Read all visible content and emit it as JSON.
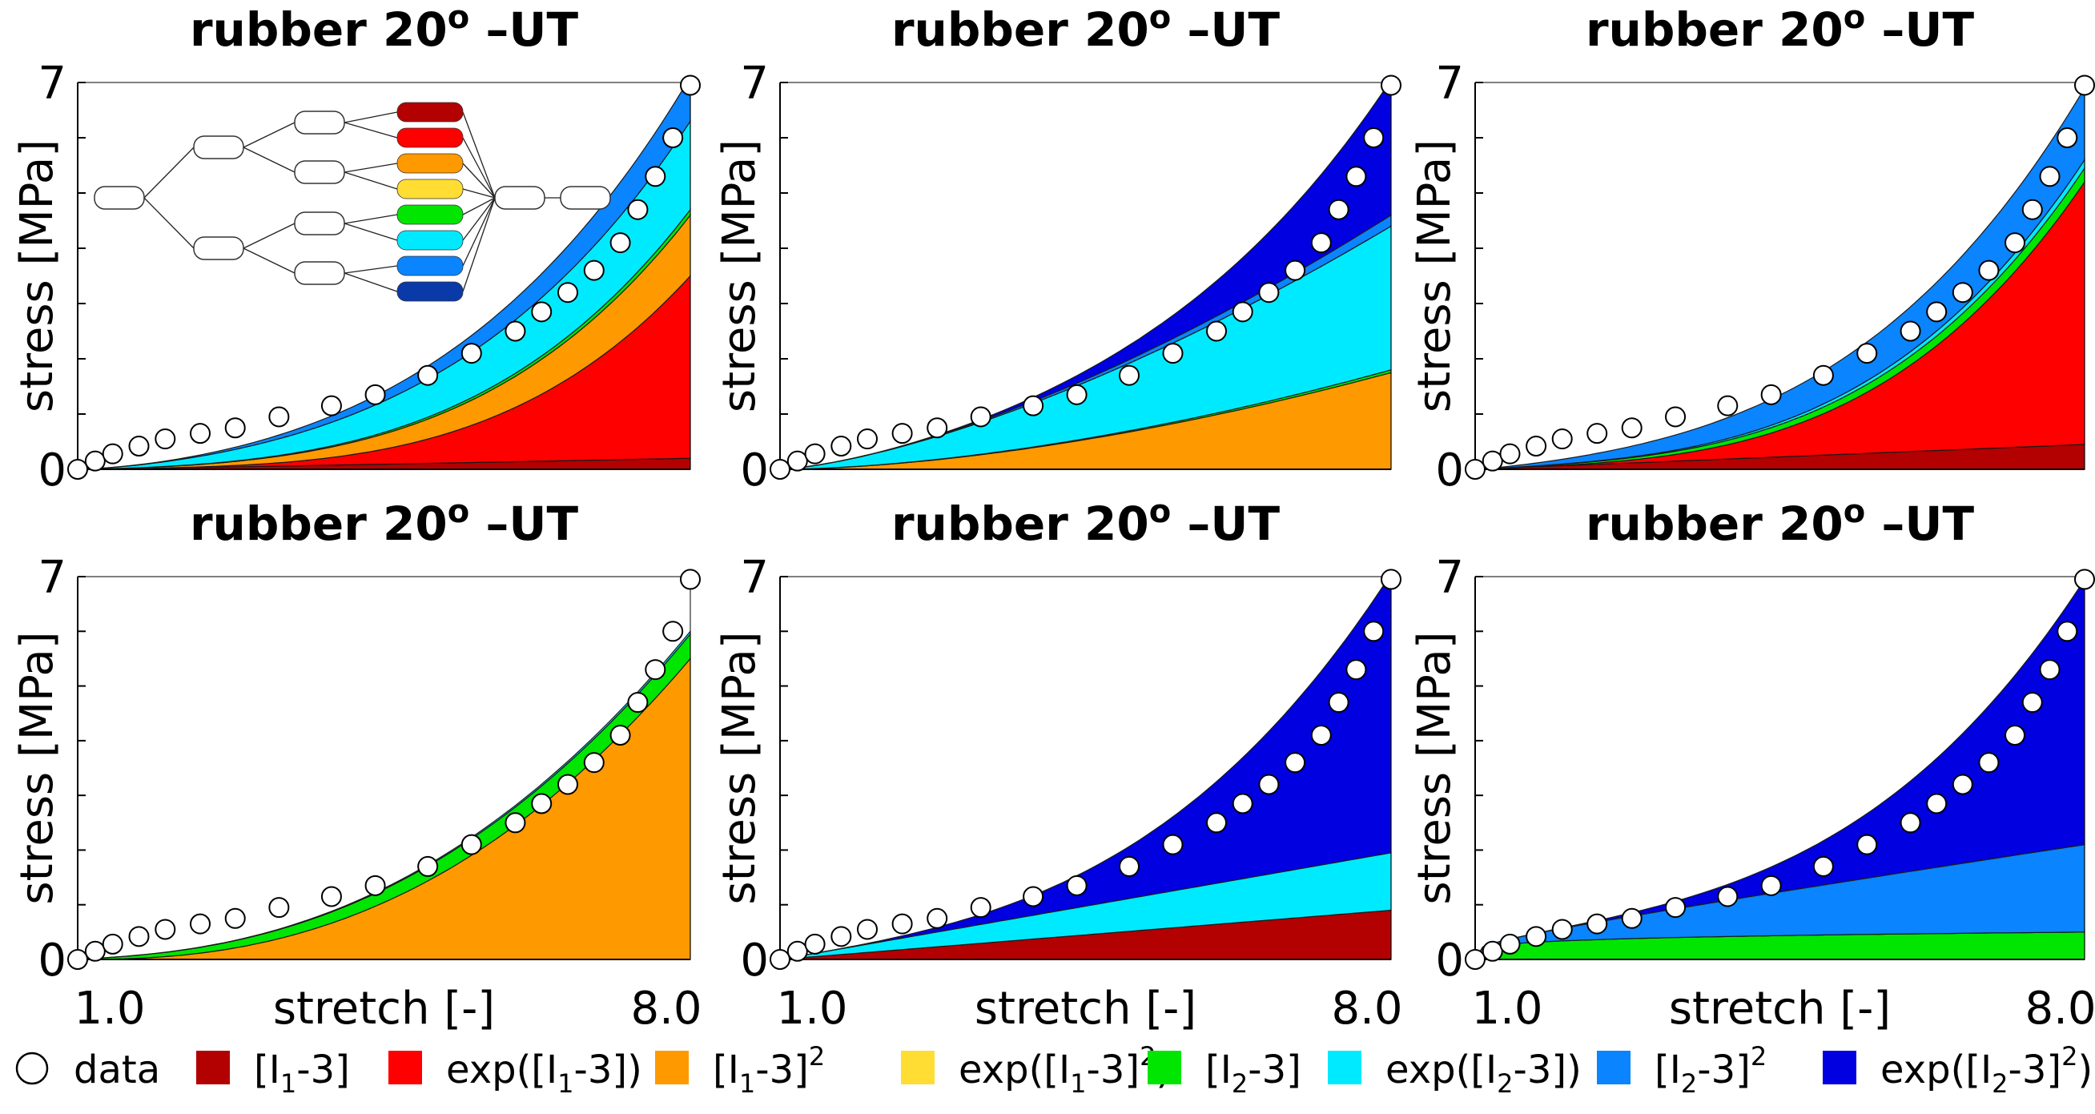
{
  "figure": {
    "colors": {
      "lin_I1": "#b30000",
      "exp_I1": "#ff0000",
      "quad_I1": "#ff9900",
      "expquad_I1": "#ffdd33",
      "lin_I2": "#00e600",
      "exp_I2": "#00eaff",
      "quad_I2": "#0a84ff",
      "expquad_I2": "#0000e0"
    },
    "legend": [
      {
        "key": "data",
        "marker": "circle",
        "parts": [
          {
            "t": "data"
          }
        ]
      },
      {
        "key": "lin_I1",
        "parts": [
          {
            "t": "[I"
          },
          {
            "t": "1",
            "sub": true
          },
          {
            "t": "-3]"
          }
        ]
      },
      {
        "key": "exp_I1",
        "parts": [
          {
            "t": "exp([I"
          },
          {
            "t": "1",
            "sub": true
          },
          {
            "t": "-3])"
          }
        ]
      },
      {
        "key": "quad_I1",
        "parts": [
          {
            "t": "[I"
          },
          {
            "t": "1",
            "sub": true
          },
          {
            "t": "-3]"
          },
          {
            "t": "2",
            "sup": true
          }
        ]
      },
      {
        "key": "expquad_I1",
        "parts": [
          {
            "t": "exp([I"
          },
          {
            "t": "1",
            "sub": true
          },
          {
            "t": "-3]"
          },
          {
            "t": "2",
            "sup": true
          },
          {
            "t": ")"
          }
        ]
      },
      {
        "key": "lin_I2",
        "parts": [
          {
            "t": "[I"
          },
          {
            "t": "2",
            "sub": true
          },
          {
            "t": "-3]"
          }
        ]
      },
      {
        "key": "exp_I2",
        "parts": [
          {
            "t": "exp([I"
          },
          {
            "t": "2",
            "sub": true
          },
          {
            "t": "-3])"
          }
        ]
      },
      {
        "key": "quad_I2",
        "parts": [
          {
            "t": "[I"
          },
          {
            "t": "2",
            "sub": true
          },
          {
            "t": "-3]"
          },
          {
            "t": "2",
            "sup": true
          }
        ]
      },
      {
        "key": "expquad_I2",
        "parts": [
          {
            "t": "exp([I"
          },
          {
            "t": "2",
            "sub": true
          },
          {
            "t": "-3]"
          },
          {
            "t": "2",
            "sup": true
          },
          {
            "t": ")"
          }
        ]
      }
    ],
    "inset": {
      "node_colors": [
        "#b30000",
        "#ff0000",
        "#ff9900",
        "#ffdd33",
        "#00e600",
        "#00eaff",
        "#0a84ff",
        "#0a3aa8"
      ]
    }
  },
  "chart_data": [
    {
      "type": "area",
      "title_main": "rubber 20",
      "title_sup": "o",
      "title_suffix": " –UT",
      "xlabel": "stretch [-]",
      "ylabel": "stress [MPa]",
      "xlim": [
        1.0,
        8.0
      ],
      "ylim": [
        0,
        7
      ],
      "xticklabels": [
        "1.0",
        "8.0"
      ],
      "yticklabels": [
        "0",
        "7"
      ],
      "terms": [
        {
          "key": "lin_I1",
          "max": 0.2,
          "p": 1.1
        },
        {
          "key": "exp_I1",
          "max": 3.3,
          "p": 3.6
        },
        {
          "key": "quad_I1",
          "max": 1.1,
          "p": 2.0
        },
        {
          "key": "lin_I2",
          "max": 0.1,
          "p": 1.8
        },
        {
          "key": "exp_I2",
          "max": 1.6,
          "p": 1.5
        },
        {
          "key": "quad_I2",
          "max": 0.8,
          "p": 2.2
        }
      ],
      "data_x": [
        1.0,
        1.2,
        1.4,
        1.7,
        2.0,
        2.4,
        2.8,
        3.3,
        3.9,
        4.4,
        5.0,
        5.5,
        6.0,
        6.3,
        6.6,
        6.9,
        7.2,
        7.4,
        7.6,
        7.8,
        8.0
      ],
      "data_y": [
        0.0,
        0.15,
        0.28,
        0.42,
        0.55,
        0.65,
        0.75,
        0.95,
        1.15,
        1.35,
        1.7,
        2.1,
        2.5,
        2.85,
        3.2,
        3.6,
        4.1,
        4.7,
        5.3,
        6.0,
        6.95
      ]
    },
    {
      "type": "area",
      "title_main": "rubber 20",
      "title_sup": "o",
      "title_suffix": " –UT",
      "xlabel": "stretch [-]",
      "ylabel": "stress [MPa]",
      "xlim": [
        1.0,
        8.0
      ],
      "ylim": [
        0,
        7
      ],
      "xticklabels": [
        "1.0",
        "8.0"
      ],
      "yticklabels": [
        "0",
        "7"
      ],
      "terms": [
        {
          "key": "quad_I1",
          "max": 1.75,
          "p": 1.7
        },
        {
          "key": "lin_I2",
          "max": 0.05,
          "p": 1.5
        },
        {
          "key": "exp_I2",
          "max": 2.6,
          "p": 1.35
        },
        {
          "key": "quad_I2",
          "max": 0.2,
          "p": 2.0
        },
        {
          "key": "expquad_I2",
          "max": 2.45,
          "p": 4.0
        }
      ],
      "data_x": [
        1.0,
        1.2,
        1.4,
        1.7,
        2.0,
        2.4,
        2.8,
        3.3,
        3.9,
        4.4,
        5.0,
        5.5,
        6.0,
        6.3,
        6.6,
        6.9,
        7.2,
        7.4,
        7.6,
        7.8,
        8.0
      ],
      "data_y": [
        0.0,
        0.15,
        0.28,
        0.42,
        0.55,
        0.65,
        0.75,
        0.95,
        1.15,
        1.35,
        1.7,
        2.1,
        2.5,
        2.85,
        3.2,
        3.6,
        4.1,
        4.7,
        5.3,
        6.0,
        6.95
      ]
    },
    {
      "type": "area",
      "title_main": "rubber 20",
      "title_sup": "o",
      "title_suffix": " –UT",
      "xlabel": "stretch [-]",
      "ylabel": "stress [MPa]",
      "xlim": [
        1.0,
        8.0
      ],
      "ylim": [
        0,
        7
      ],
      "xticklabels": [
        "1.0",
        "8.0"
      ],
      "yticklabels": [
        "0",
        "7"
      ],
      "terms": [
        {
          "key": "lin_I1",
          "max": 0.45,
          "p": 1.0
        },
        {
          "key": "exp_I1",
          "max": 4.75,
          "p": 3.3
        },
        {
          "key": "lin_I2",
          "max": 0.25,
          "p": 1.3
        },
        {
          "key": "exp_I2",
          "max": 0.15,
          "p": 1.8
        },
        {
          "key": "quad_I2",
          "max": 1.3,
          "p": 1.4
        }
      ],
      "data_x": [
        1.0,
        1.2,
        1.4,
        1.7,
        2.0,
        2.4,
        2.8,
        3.3,
        3.9,
        4.4,
        5.0,
        5.5,
        6.0,
        6.3,
        6.6,
        6.9,
        7.2,
        7.4,
        7.6,
        7.8,
        8.0
      ],
      "data_y": [
        0.0,
        0.15,
        0.28,
        0.42,
        0.55,
        0.65,
        0.75,
        0.95,
        1.15,
        1.35,
        1.7,
        2.1,
        2.5,
        2.85,
        3.2,
        3.6,
        4.1,
        4.7,
        5.3,
        6.0,
        6.95
      ]
    },
    {
      "type": "area",
      "title_main": "rubber 20",
      "title_sup": "o",
      "title_suffix": " –UT",
      "xlabel": "stretch [-]",
      "ylabel": "stress [MPa]",
      "xlim": [
        1.0,
        8.0
      ],
      "ylim": [
        0,
        7
      ],
      "xticklabels": [
        "1.0",
        "8.0"
      ],
      "yticklabels": [
        "0",
        "7"
      ],
      "terms": [
        {
          "key": "quad_I1",
          "max": 5.5,
          "p": 2.4
        },
        {
          "key": "lin_I2",
          "max": 0.45,
          "p": 0.9
        },
        {
          "key": "exp_I2",
          "max": 0.05,
          "p": 1.5
        }
      ],
      "data_x": [
        1.0,
        1.2,
        1.4,
        1.7,
        2.0,
        2.4,
        2.8,
        3.3,
        3.9,
        4.4,
        5.0,
        5.5,
        6.0,
        6.3,
        6.6,
        6.9,
        7.2,
        7.4,
        7.6,
        7.8,
        8.0
      ],
      "data_y": [
        0.0,
        0.15,
        0.28,
        0.42,
        0.55,
        0.65,
        0.75,
        0.95,
        1.15,
        1.35,
        1.7,
        2.1,
        2.5,
        2.85,
        3.2,
        3.6,
        4.1,
        4.7,
        5.3,
        6.0,
        6.95
      ]
    },
    {
      "type": "area",
      "title_main": "rubber 20",
      "title_sup": "o",
      "title_suffix": " –UT",
      "xlabel": "stretch [-]",
      "ylabel": "stress [MPa]",
      "xlim": [
        1.0,
        8.0
      ],
      "ylim": [
        0,
        7
      ],
      "xticklabels": [
        "1.0",
        "8.0"
      ],
      "yticklabels": [
        "0",
        "7"
      ],
      "terms": [
        {
          "key": "lin_I1",
          "max": 0.9,
          "p": 1.0
        },
        {
          "key": "exp_I2",
          "max": 1.05,
          "p": 1.0
        },
        {
          "key": "expquad_I2",
          "max": 5.1,
          "p": 3.0
        }
      ],
      "data_x": [
        1.0,
        1.2,
        1.4,
        1.7,
        2.0,
        2.4,
        2.8,
        3.3,
        3.9,
        4.4,
        5.0,
        5.5,
        6.0,
        6.3,
        6.6,
        6.9,
        7.2,
        7.4,
        7.6,
        7.8,
        8.0
      ],
      "data_y": [
        0.0,
        0.15,
        0.28,
        0.42,
        0.55,
        0.65,
        0.75,
        0.95,
        1.15,
        1.35,
        1.7,
        2.1,
        2.5,
        2.85,
        3.2,
        3.6,
        4.1,
        4.7,
        5.3,
        6.0,
        6.95
      ]
    },
    {
      "type": "area",
      "title_main": "rubber 20",
      "title_sup": "o",
      "title_suffix": " –UT",
      "xlabel": "stretch [-]",
      "ylabel": "stress [MPa]",
      "xlim": [
        1.0,
        8.0
      ],
      "ylim": [
        0,
        7
      ],
      "xticklabels": [
        "1.0",
        "8.0"
      ],
      "yticklabels": [
        "0",
        "7"
      ],
      "terms": [
        {
          "key": "lin_I2",
          "max": 0.5,
          "p": 0.2
        },
        {
          "key": "quad_I2",
          "max": 1.6,
          "p": 1.0
        },
        {
          "key": "expquad_I2",
          "max": 4.85,
          "p": 3.2
        }
      ],
      "data_x": [
        1.0,
        1.2,
        1.4,
        1.7,
        2.0,
        2.4,
        2.8,
        3.3,
        3.9,
        4.4,
        5.0,
        5.5,
        6.0,
        6.3,
        6.6,
        6.9,
        7.2,
        7.4,
        7.6,
        7.8,
        8.0
      ],
      "data_y": [
        0.0,
        0.15,
        0.28,
        0.42,
        0.55,
        0.65,
        0.75,
        0.95,
        1.15,
        1.35,
        1.7,
        2.1,
        2.5,
        2.85,
        3.2,
        3.6,
        4.1,
        4.7,
        5.3,
        6.0,
        6.95
      ]
    }
  ]
}
